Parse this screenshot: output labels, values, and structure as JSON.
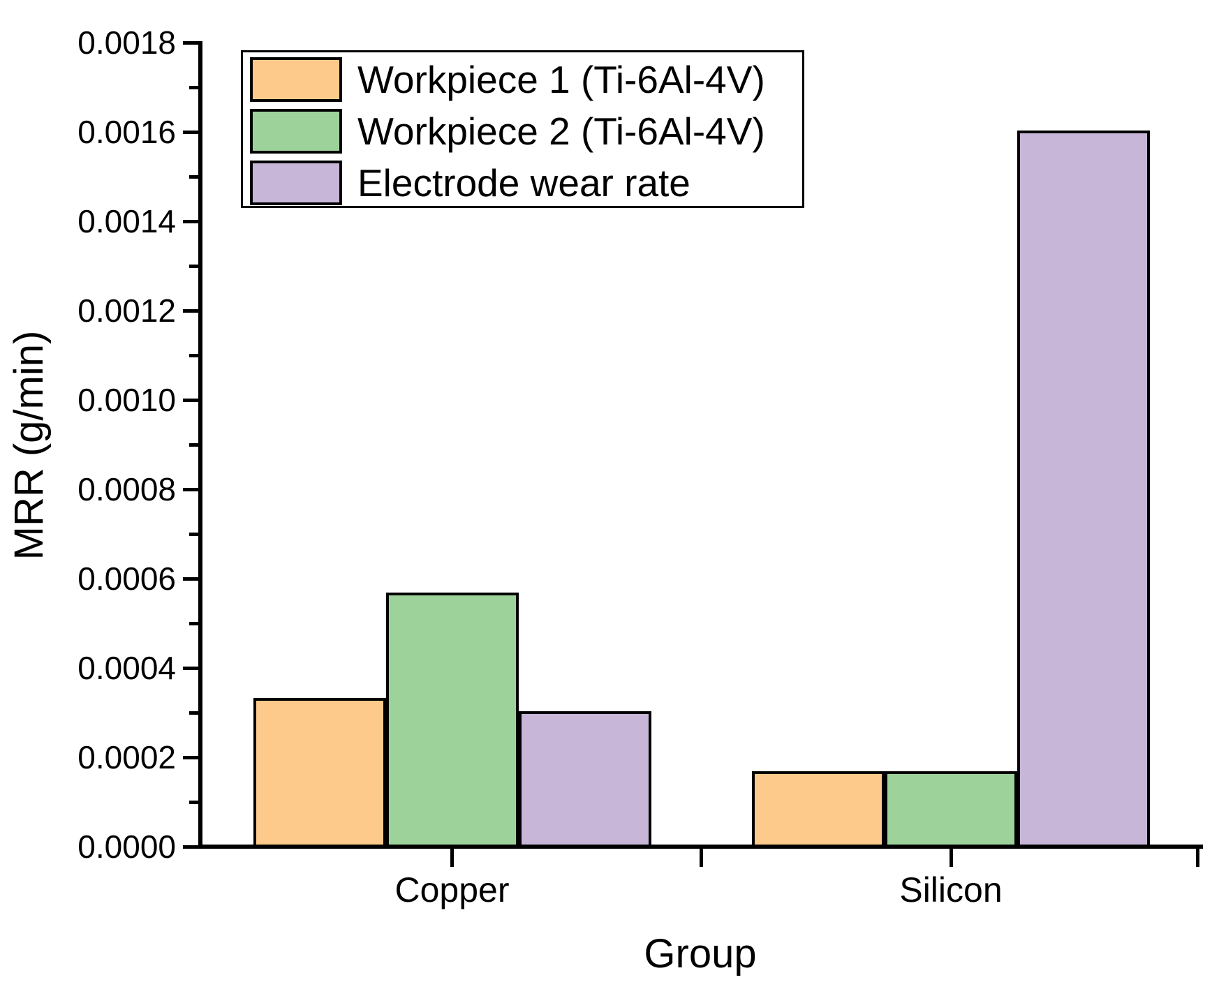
{
  "figure": {
    "background": "#ffffff",
    "text_color": "#000000"
  },
  "chart_data": {
    "type": "bar",
    "title": "",
    "xlabel": "Group",
    "ylabel": "MRR (g/min)",
    "categories": [
      "Copper",
      "Silicon"
    ],
    "series": [
      {
        "name": "Workpiece 1 (Ti-6Al-4V)",
        "color": "#FDCA8B",
        "values": [
          0.00033,
          0.000165
        ]
      },
      {
        "name": "Workpiece 2 (Ti-6Al-4V)",
        "color": "#9DD39A",
        "values": [
          0.000565,
          0.000165
        ]
      },
      {
        "name": "Electrode wear rate",
        "color": "#C7B6D8",
        "values": [
          0.0003,
          0.0016
        ]
      }
    ],
    "ylim": [
      0,
      0.0018
    ],
    "ytick_step": 0.0002,
    "ytick_minor_step": 0.0001,
    "ytick_labels": [
      "0.0000",
      "0.0002",
      "0.0004",
      "0.0006",
      "0.0008",
      "0.0010",
      "0.0012",
      "0.0014",
      "0.0016",
      "0.0018"
    ],
    "bar_edge_color": "#000000",
    "grid": false,
    "legend_position": "top-left"
  }
}
